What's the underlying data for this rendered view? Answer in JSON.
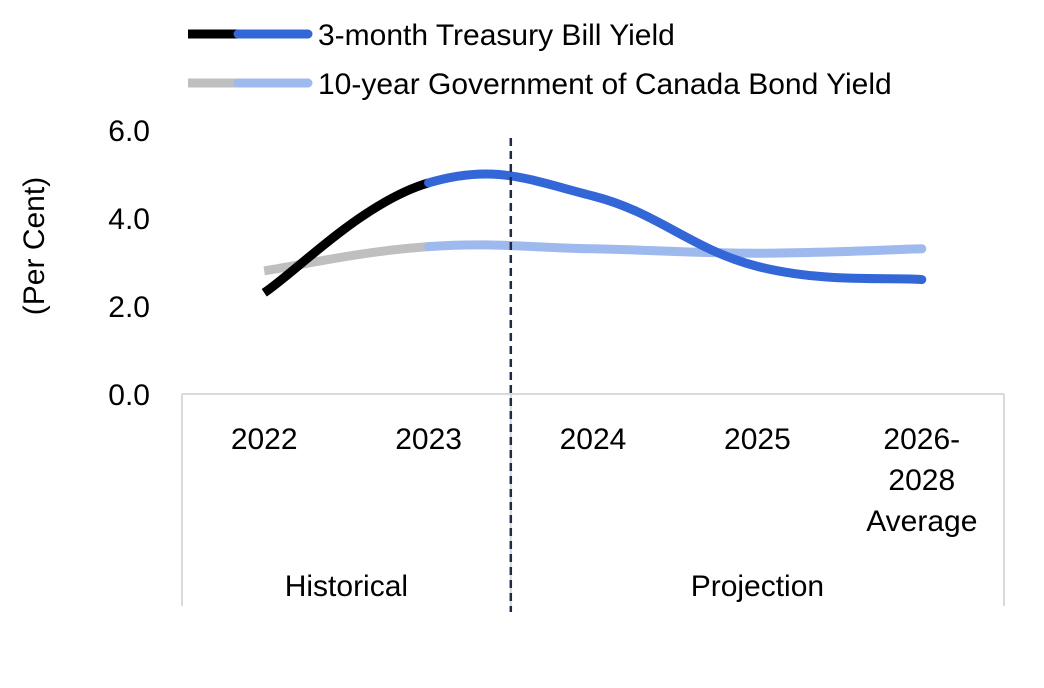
{
  "chart_data": {
    "type": "line",
    "title": "",
    "xlabel": "",
    "ylabel": "(Per Cent)",
    "ylim": [
      0,
      6
    ],
    "y_ticks": [
      "0.0",
      "2.0",
      "4.0",
      "6.0"
    ],
    "categories": [
      [
        "2022"
      ],
      [
        "2023"
      ],
      [
        "2024"
      ],
      [
        "2025"
      ],
      [
        "2026-",
        "2028",
        "Average"
      ]
    ],
    "groups": [
      {
        "label": "Historical",
        "span": [
          0,
          1
        ]
      },
      {
        "label": "Projection",
        "span": [
          2,
          4
        ]
      }
    ],
    "divider_after_index": 1,
    "series": [
      {
        "name": "3-month Treasury Bill Yield",
        "values": [
          2.3,
          4.8,
          4.5,
          2.9,
          2.6
        ],
        "historical_color": "#000000",
        "projection_color": "#3366d6"
      },
      {
        "name": "10-year Government of Canada Bond Yield",
        "values": [
          2.8,
          3.35,
          3.3,
          3.2,
          3.3
        ],
        "historical_color": "#bfbfbf",
        "projection_color": "#9db9ee"
      }
    ],
    "legend_position": "top-left",
    "grid": false
  }
}
